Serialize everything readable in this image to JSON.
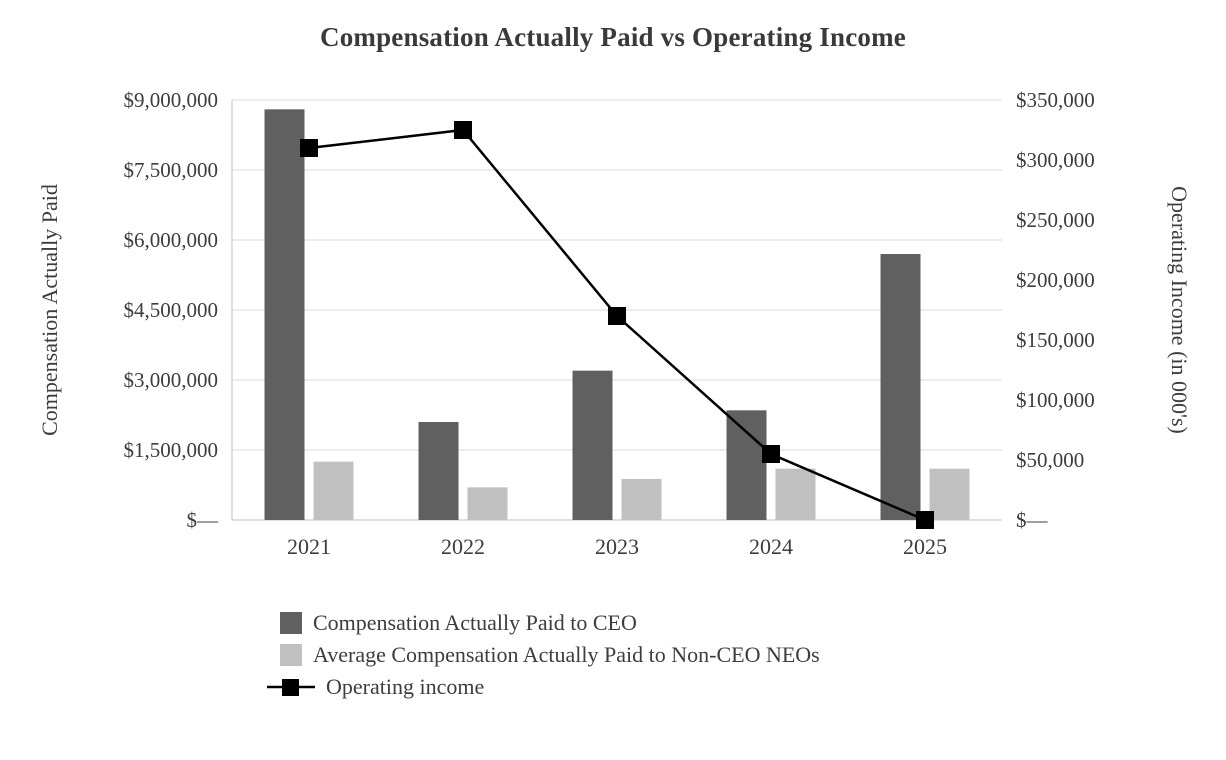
{
  "chart_data": {
    "type": "combo-bar-line",
    "title": "Compensation Actually Paid vs Operating Income",
    "categories": [
      "2021",
      "2022",
      "2023",
      "2024",
      "2025"
    ],
    "bar_series": [
      {
        "name": "Compensation Actually Paid to CEO",
        "color": "#606060",
        "axis": "left",
        "values": [
          8800000,
          2100000,
          3200000,
          2350000,
          5700000
        ]
      },
      {
        "name": "Average Compensation Actually Paid to Non-CEO NEOs",
        "color": "#c0c0c0",
        "axis": "left",
        "values": [
          1250000,
          700000,
          880000,
          1100000,
          1100000
        ]
      }
    ],
    "line_series": {
      "name": "Operating income",
      "color": "#000000",
      "marker": "square",
      "axis": "right",
      "values": [
        310000,
        325000,
        170000,
        55000,
        0
      ]
    },
    "left_axis": {
      "label": "Compensation Actually Paid",
      "min": 0,
      "max": 9000000,
      "ticks": [
        "$—",
        "$1,500,000",
        "$3,000,000",
        "$4,500,000",
        "$6,000,000",
        "$7,500,000",
        "$9,000,000"
      ]
    },
    "right_axis": {
      "label": "Operating Income (in 000's)",
      "min": 0,
      "max": 350000,
      "ticks": [
        "$—",
        "$50,000",
        "$100,000",
        "$150,000",
        "$200,000",
        "$250,000",
        "$300,000",
        "$350,000"
      ]
    },
    "grid": true,
    "legend_position": "bottom-left",
    "colors": {
      "gridline": "#d9d9d9",
      "axis_line": "#bfbfbf",
      "text": "#3d3d3d"
    }
  }
}
